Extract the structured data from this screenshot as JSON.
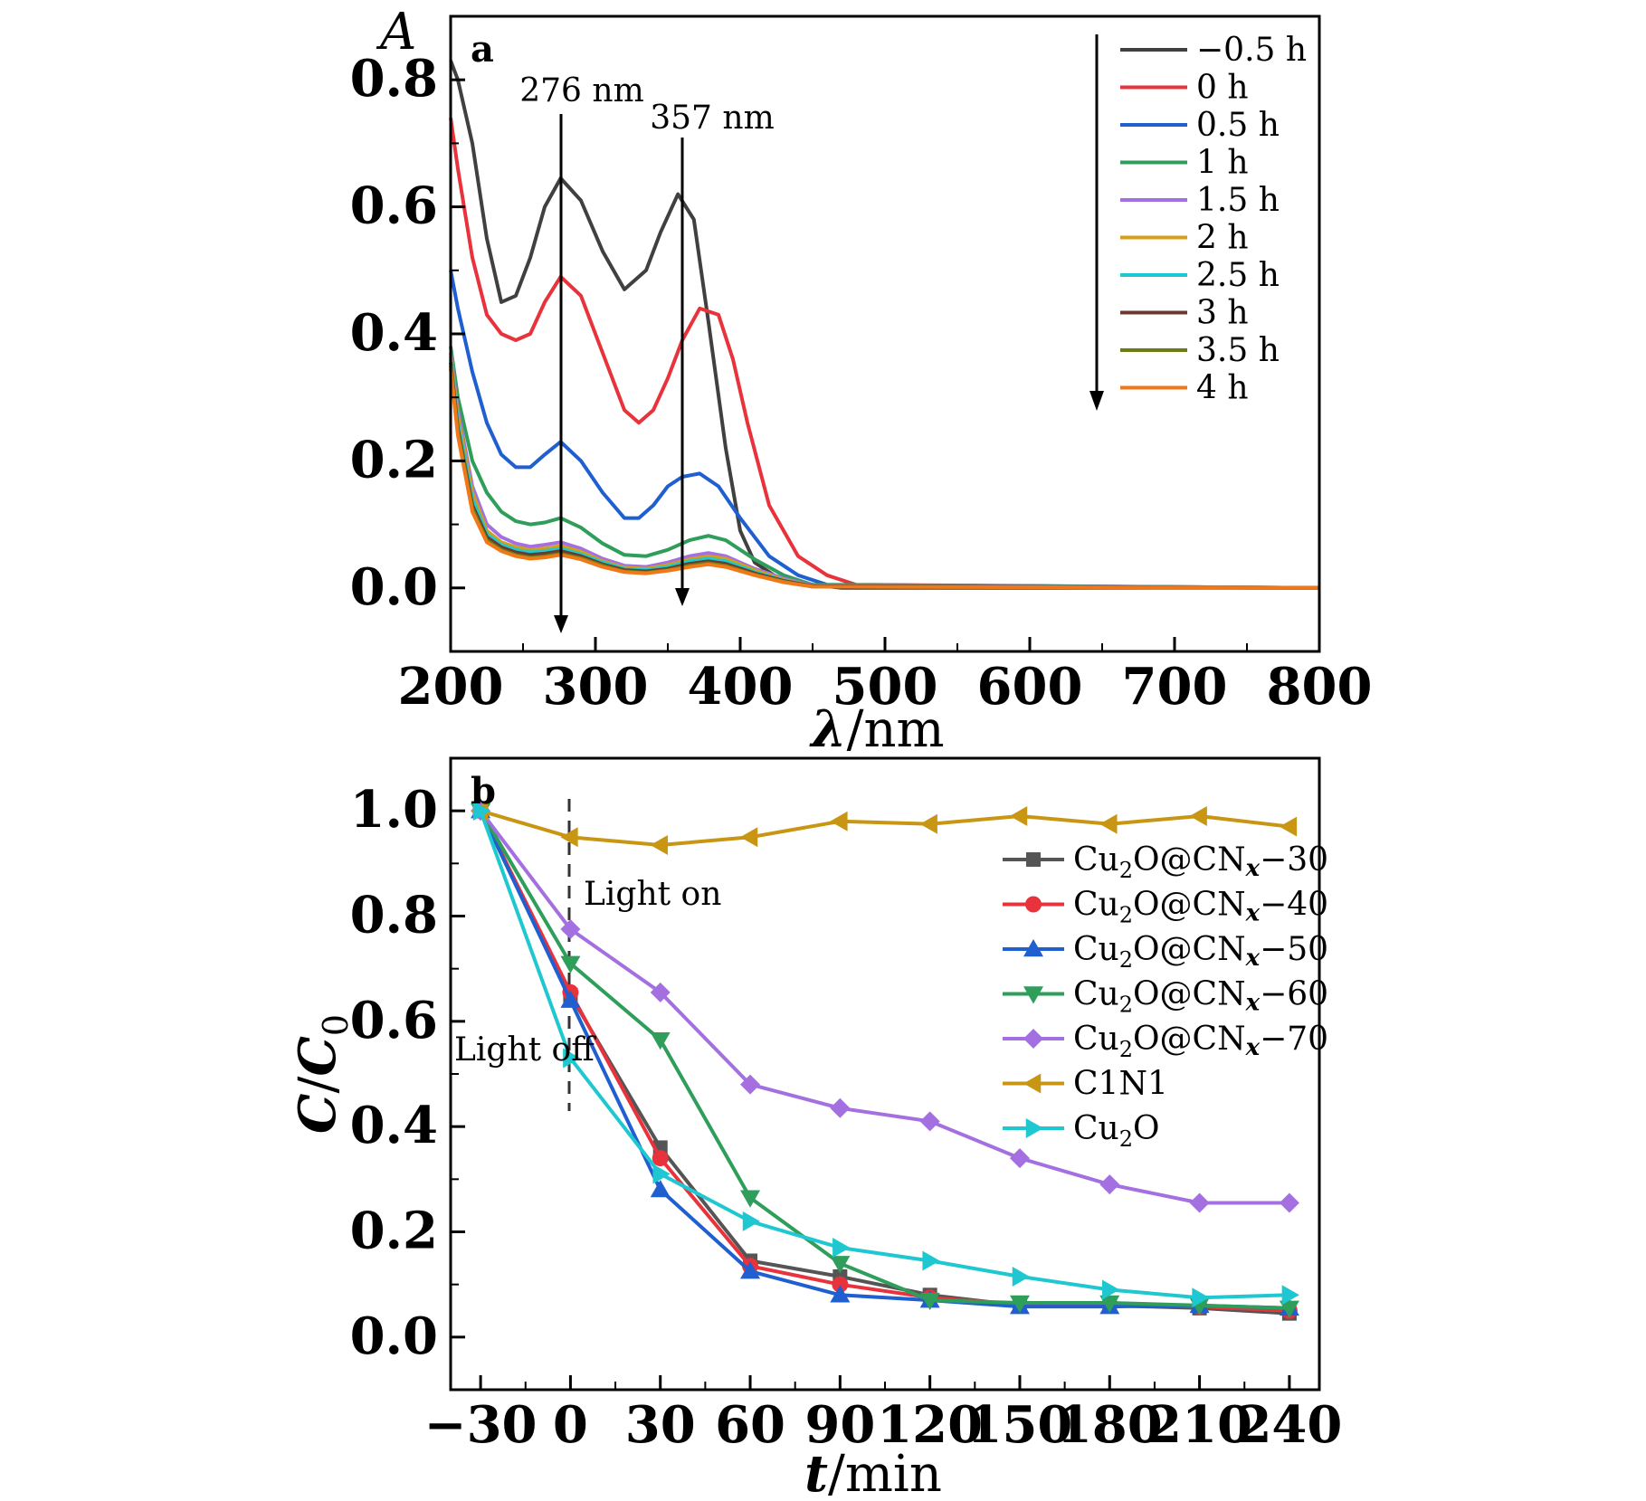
{
  "chart_data": [
    {
      "panel_label": "a",
      "type": "line",
      "ylabel": "A",
      "xlabel_symbol": "λ",
      "xlabel_unit": "nm",
      "xlim": [
        200,
        800
      ],
      "ylim": [
        -0.1,
        0.9
      ],
      "xticks": [
        200,
        300,
        400,
        500,
        600,
        700,
        800
      ],
      "yticks": [
        0.0,
        0.2,
        0.4,
        0.6,
        0.8
      ],
      "grid": false,
      "legend_position": "top-right",
      "annotations": [
        {
          "text": "276 nm",
          "x": 276
        },
        {
          "text": "357 nm",
          "x": 357
        }
      ],
      "series": [
        {
          "name": "−0.5 h",
          "color": "#404040",
          "x": [
            200,
            205,
            215,
            225,
            235,
            245,
            255,
            265,
            276,
            290,
            305,
            320,
            335,
            345,
            357,
            368,
            378,
            390,
            400,
            410,
            430,
            470,
            800
          ],
          "y": [
            0.83,
            0.8,
            0.7,
            0.55,
            0.45,
            0.46,
            0.52,
            0.6,
            0.645,
            0.61,
            0.53,
            0.47,
            0.5,
            0.56,
            0.62,
            0.58,
            0.42,
            0.22,
            0.09,
            0.04,
            0.01,
            0.0,
            0.0
          ]
        },
        {
          "name": "0 h",
          "color": "#e8323c",
          "x": [
            200,
            205,
            215,
            225,
            235,
            245,
            255,
            265,
            276,
            290,
            305,
            320,
            330,
            340,
            350,
            360,
            372,
            385,
            395,
            405,
            420,
            440,
            460,
            480,
            800
          ],
          "y": [
            0.74,
            0.66,
            0.52,
            0.43,
            0.4,
            0.39,
            0.4,
            0.45,
            0.49,
            0.46,
            0.37,
            0.28,
            0.26,
            0.28,
            0.33,
            0.39,
            0.44,
            0.43,
            0.36,
            0.26,
            0.13,
            0.05,
            0.02,
            0.005,
            0.0
          ]
        },
        {
          "name": "0.5 h",
          "color": "#1f5fd0",
          "x": [
            200,
            205,
            215,
            225,
            235,
            245,
            255,
            265,
            276,
            290,
            305,
            320,
            330,
            340,
            350,
            360,
            372,
            385,
            400,
            420,
            440,
            460,
            800
          ],
          "y": [
            0.5,
            0.44,
            0.34,
            0.26,
            0.21,
            0.19,
            0.19,
            0.21,
            0.23,
            0.2,
            0.15,
            0.11,
            0.11,
            0.13,
            0.16,
            0.175,
            0.18,
            0.16,
            0.11,
            0.05,
            0.02,
            0.005,
            0.0
          ]
        },
        {
          "name": "1 h",
          "color": "#2e9e5a",
          "x": [
            200,
            205,
            215,
            225,
            235,
            245,
            255,
            265,
            276,
            290,
            305,
            320,
            335,
            350,
            365,
            378,
            390,
            410,
            430,
            450,
            800
          ],
          "y": [
            0.38,
            0.3,
            0.2,
            0.15,
            0.12,
            0.105,
            0.1,
            0.103,
            0.11,
            0.095,
            0.07,
            0.052,
            0.05,
            0.06,
            0.075,
            0.082,
            0.075,
            0.045,
            0.02,
            0.005,
            0.0
          ]
        },
        {
          "name": "1.5 h",
          "color": "#a46fe0",
          "x": [
            200,
            205,
            215,
            225,
            235,
            245,
            255,
            265,
            276,
            290,
            305,
            320,
            335,
            350,
            365,
            378,
            390,
            410,
            430,
            450,
            800
          ],
          "y": [
            0.37,
            0.28,
            0.16,
            0.1,
            0.08,
            0.07,
            0.065,
            0.068,
            0.072,
            0.062,
            0.046,
            0.035,
            0.033,
            0.04,
            0.05,
            0.055,
            0.05,
            0.03,
            0.015,
            0.004,
            0.0
          ]
        },
        {
          "name": "2 h",
          "color": "#d4a017",
          "x": [
            200,
            205,
            215,
            225,
            235,
            245,
            255,
            265,
            276,
            290,
            305,
            320,
            335,
            350,
            365,
            378,
            390,
            410,
            430,
            450,
            800
          ],
          "y": [
            0.365,
            0.27,
            0.15,
            0.09,
            0.072,
            0.064,
            0.06,
            0.062,
            0.066,
            0.057,
            0.042,
            0.032,
            0.03,
            0.036,
            0.045,
            0.05,
            0.046,
            0.028,
            0.013,
            0.003,
            0.0
          ]
        },
        {
          "name": "2.5 h",
          "color": "#1fc8d0",
          "x": [
            200,
            205,
            215,
            225,
            235,
            245,
            255,
            265,
            276,
            290,
            305,
            320,
            335,
            350,
            365,
            378,
            390,
            410,
            430,
            450,
            800
          ],
          "y": [
            0.36,
            0.26,
            0.14,
            0.085,
            0.068,
            0.06,
            0.056,
            0.058,
            0.062,
            0.053,
            0.04,
            0.03,
            0.028,
            0.033,
            0.042,
            0.046,
            0.042,
            0.025,
            0.012,
            0.003,
            0.0
          ]
        },
        {
          "name": "3 h",
          "color": "#6b3a2e",
          "x": [
            200,
            205,
            215,
            225,
            235,
            245,
            255,
            265,
            276,
            290,
            305,
            320,
            335,
            350,
            365,
            378,
            390,
            410,
            430,
            450,
            800
          ],
          "y": [
            0.355,
            0.25,
            0.13,
            0.08,
            0.064,
            0.056,
            0.052,
            0.054,
            0.058,
            0.05,
            0.037,
            0.028,
            0.026,
            0.03,
            0.038,
            0.042,
            0.038,
            0.023,
            0.011,
            0.003,
            0.0
          ]
        },
        {
          "name": "3.5 h",
          "color": "#6b7d12",
          "x": [
            200,
            205,
            215,
            225,
            235,
            245,
            255,
            265,
            276,
            290,
            305,
            320,
            335,
            350,
            365,
            378,
            390,
            410,
            430,
            450,
            800
          ],
          "y": [
            0.35,
            0.245,
            0.125,
            0.075,
            0.06,
            0.052,
            0.048,
            0.05,
            0.054,
            0.047,
            0.035,
            0.026,
            0.024,
            0.028,
            0.035,
            0.039,
            0.035,
            0.021,
            0.01,
            0.002,
            0.0
          ]
        },
        {
          "name": "4 h",
          "color": "#f07818",
          "x": [
            200,
            205,
            215,
            225,
            235,
            245,
            255,
            265,
            276,
            290,
            305,
            320,
            335,
            350,
            365,
            378,
            390,
            410,
            430,
            450,
            800
          ],
          "y": [
            0.345,
            0.24,
            0.12,
            0.072,
            0.058,
            0.05,
            0.046,
            0.048,
            0.052,
            0.045,
            0.033,
            0.025,
            0.023,
            0.027,
            0.033,
            0.037,
            0.033,
            0.02,
            0.009,
            0.002,
            0.0
          ]
        }
      ]
    },
    {
      "panel_label": "b",
      "type": "line",
      "ylabel_num": "C",
      "ylabel_den": "C",
      "ylabel_sub": "0",
      "xlabel_symbol": "t",
      "xlabel_unit": "min",
      "xlim": [
        -40,
        250
      ],
      "ylim": [
        -0.1,
        1.1
      ],
      "categories": [
        -30,
        0,
        30,
        60,
        90,
        120,
        150,
        180,
        210,
        240
      ],
      "xtick_labels": [
        "−30",
        "0",
        "30",
        "60",
        "90",
        "120",
        "150",
        "180",
        "210",
        "240"
      ],
      "yticks": [
        0.0,
        0.2,
        0.4,
        0.6,
        0.8,
        1.0
      ],
      "grid": false,
      "legend_position": "right",
      "annotations": [
        {
          "text": "Light on"
        },
        {
          "text": "Light off"
        }
      ],
      "series": [
        {
          "name": "Cu2O@CNx-30",
          "legend_parts": [
            "Cu",
            "2",
            "O@CN",
            "x",
            "−30"
          ],
          "color": "#555555",
          "marker": "square",
          "values": [
            1.0,
            0.65,
            0.36,
            0.145,
            0.115,
            0.08,
            0.06,
            0.06,
            0.055,
            0.045
          ]
        },
        {
          "name": "Cu2O@CNx-40",
          "legend_parts": [
            "Cu",
            "2",
            "O@CN",
            "x",
            "−40"
          ],
          "color": "#e8323c",
          "marker": "circle",
          "values": [
            1.0,
            0.655,
            0.34,
            0.135,
            0.1,
            0.075,
            0.062,
            0.062,
            0.058,
            0.05
          ]
        },
        {
          "name": "Cu2O@CNx-50",
          "legend_parts": [
            "Cu",
            "2",
            "O@CN",
            "x",
            "−50"
          ],
          "color": "#1f5fd0",
          "marker": "triangle-up",
          "values": [
            1.0,
            0.64,
            0.28,
            0.125,
            0.08,
            0.07,
            0.058,
            0.058,
            0.06,
            0.055
          ]
        },
        {
          "name": "Cu2O@CNx-60",
          "legend_parts": [
            "Cu",
            "2",
            "O@CN",
            "x",
            "−60"
          ],
          "color": "#2e9e5a",
          "marker": "triangle-down",
          "values": [
            1.0,
            0.71,
            0.565,
            0.265,
            0.14,
            0.07,
            0.065,
            0.065,
            0.06,
            0.055
          ]
        },
        {
          "name": "Cu2O@CNx-70",
          "legend_parts": [
            "Cu",
            "2",
            "O@CN",
            "x",
            "−70"
          ],
          "color": "#a46fe0",
          "marker": "diamond",
          "values": [
            1.0,
            0.775,
            0.655,
            0.48,
            0.435,
            0.41,
            0.34,
            0.29,
            0.255,
            0.255
          ]
        },
        {
          "name": "C1N1",
          "legend_parts": [
            "C1N1",
            "",
            "",
            "",
            ""
          ],
          "color": "#c89612",
          "marker": "triangle-left",
          "values": [
            1.0,
            0.95,
            0.935,
            0.95,
            0.98,
            0.975,
            0.99,
            0.975,
            0.99,
            0.97
          ]
        },
        {
          "name": "Cu2O",
          "legend_parts": [
            "Cu",
            "2",
            "O",
            "",
            ""
          ],
          "color": "#1fc8d0",
          "marker": "triangle-right",
          "values": [
            1.0,
            0.53,
            0.31,
            0.22,
            0.17,
            0.145,
            0.115,
            0.09,
            0.075,
            0.08
          ]
        }
      ]
    }
  ]
}
